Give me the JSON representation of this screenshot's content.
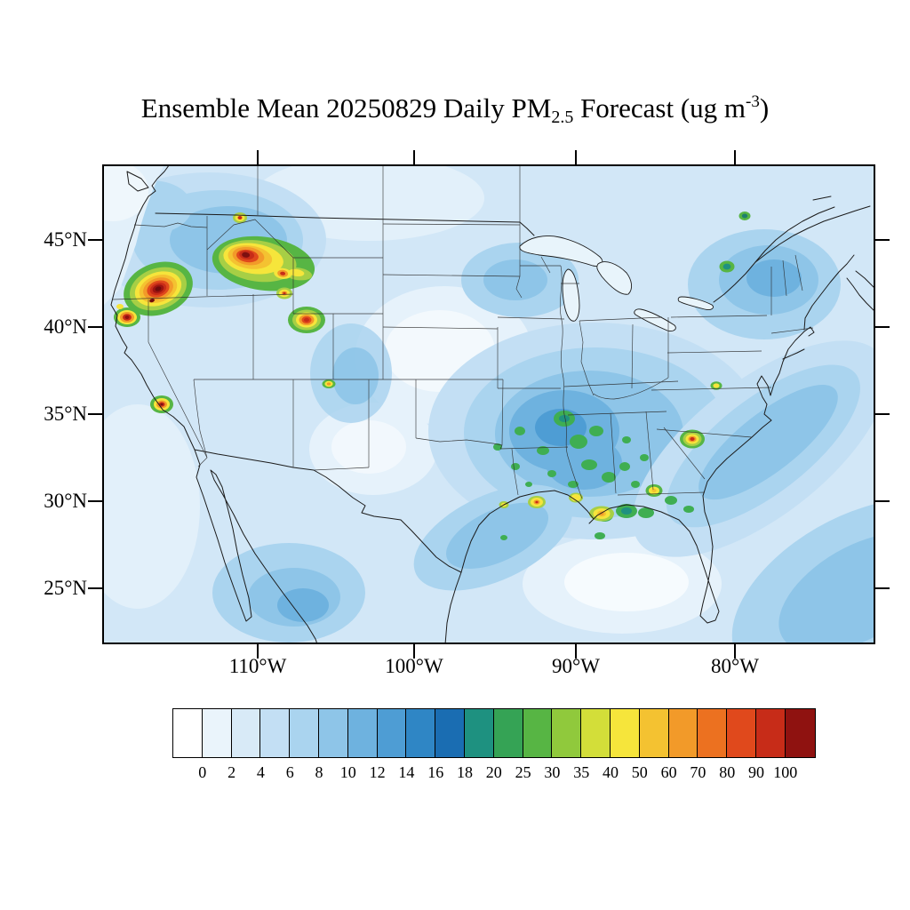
{
  "title": {
    "prefix": "Ensemble Mean 20250829 Daily PM",
    "subscript": "2.5",
    "middle": " Forecast (ug m",
    "superscript": "-3",
    "suffix": ")"
  },
  "axes": {
    "lat_ticks": [
      "45°N",
      "40°N",
      "35°N",
      "30°N",
      "25°N"
    ],
    "lon_ticks": [
      "110°W",
      "100°W",
      "90°W",
      "80°W"
    ]
  },
  "colorbar": {
    "labels": [
      "0",
      "2",
      "4",
      "6",
      "8",
      "10",
      "12",
      "14",
      "16",
      "18",
      "20",
      "25",
      "30",
      "35",
      "40",
      "50",
      "60",
      "70",
      "80",
      "90",
      "100"
    ],
    "colors": [
      "#ffffff",
      "#eaf4fb",
      "#d8eaf7",
      "#c3dff4",
      "#aad4ef",
      "#8ec5e8",
      "#6eb2df",
      "#4e9dd4",
      "#2f86c5",
      "#1a6db2",
      "#1e9180",
      "#35a355",
      "#57b544",
      "#90c93c",
      "#d3de39",
      "#f6e53b",
      "#f4c231",
      "#f29a29",
      "#ec7120",
      "#e0491c",
      "#c72c18",
      "#8f1210"
    ]
  },
  "chart_data": {
    "type": "heatmap",
    "title": "Ensemble Mean 20250829 Daily PM2.5 Forecast (ug m-3)",
    "variable": "Ensemble mean daily PM2.5 concentration forecast",
    "date": "20250829",
    "units": "ug m-3",
    "region": "Continental United States with adjacent Canada, Mexico, Atlantic and Pacific",
    "xlabel_ticks_deg_west": [
      110,
      100,
      90,
      80
    ],
    "ylabel_ticks_deg_north": [
      45,
      40,
      35,
      30,
      25
    ],
    "contour_levels": [
      0,
      2,
      4,
      6,
      8,
      10,
      12,
      14,
      16,
      18,
      20,
      25,
      30,
      35,
      40,
      50,
      60,
      70,
      80,
      90,
      100
    ],
    "palette": [
      "#ffffff",
      "#eaf4fb",
      "#d8eaf7",
      "#c3dff4",
      "#aad4ef",
      "#8ec5e8",
      "#6eb2df",
      "#4e9dd4",
      "#2f86c5",
      "#1a6db2",
      "#1e9180",
      "#35a355",
      "#57b544",
      "#90c93c",
      "#d3de39",
      "#f6e53b",
      "#f4c231",
      "#f29a29",
      "#ec7120",
      "#e0491c",
      "#c72c18",
      "#8f1210"
    ],
    "legend_position": "bottom",
    "grid": "state and national boundaries drawn, no lat/lon gridlines",
    "hotspots": [
      {
        "area": "Southwest Oregon / far Northern California",
        "approx_value": "> 100"
      },
      {
        "area": "Northwest California coast",
        "approx_value": "80-100"
      },
      {
        "area": "Central Idaho / Western Montana cluster",
        "approx_value": "> 100"
      },
      {
        "area": "Northern Idaho small spot",
        "approx_value": "70-90"
      },
      {
        "area": "Western Wyoming",
        "approx_value": "80-100"
      },
      {
        "area": "Sierra Nevada, California",
        "approx_value": "70-100"
      },
      {
        "area": "Small Utah spot",
        "approx_value": "30-50"
      },
      {
        "area": "Louisiana / Mississippi / Alabama small burn spots",
        "approx_value": "25-60 with one dot > 80"
      },
      {
        "area": "Central North Carolina",
        "approx_value": "60-90"
      },
      {
        "area": "Mid-Atlantic small spot",
        "approx_value": "25-40"
      },
      {
        "area": "Northern New York / Vermont smudge",
        "approx_value": "16-25"
      },
      {
        "area": "Ozarks / mid-South broad haze",
        "approx_value": "8-20"
      },
      {
        "area": "Background over most of domain",
        "approx_value": "2-8"
      }
    ]
  }
}
